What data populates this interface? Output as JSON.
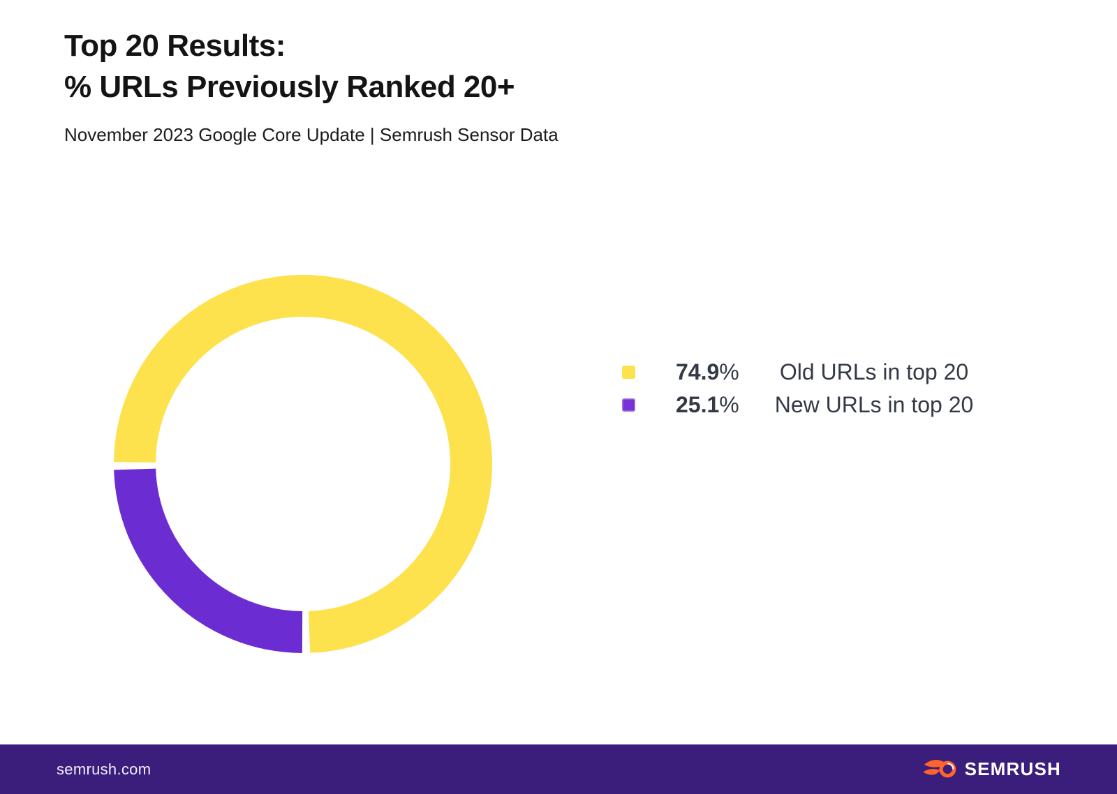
{
  "header": {
    "title_line1": "Top 20 Results:",
    "title_line2": "% URLs Previously Ranked 20+",
    "subtitle": "November 2023 Google Core Update | Semrush Sensor Data"
  },
  "chart_data": {
    "type": "pie",
    "donut": true,
    "title": "Top 20 Results: % URLs Previously Ranked 20+",
    "subtitle": "November 2023 Google Core Update | Semrush Sensor Data",
    "unit": "%",
    "series": [
      {
        "name": "Old URLs in top 20",
        "value": 74.9,
        "color": "#FDE24D",
        "legend_color": "#FDE24D"
      },
      {
        "name": "New URLs in top 20",
        "value": 25.1,
        "color": "#6B2DD1",
        "legend_color": "#7733D6"
      }
    ],
    "legend_position": "right",
    "start_angle_deg": 269.4,
    "segment_gap_deg": 2.4,
    "ring_outer_radius_px": 271,
    "ring_thickness_px": 60,
    "background": "#ffffff"
  },
  "legend": {
    "percent_sign": "%"
  },
  "footer": {
    "site": "semrush.com",
    "brand": "SEMRUSH",
    "background_color": "#3B1D7C",
    "logo_orange": "#FF642D",
    "text_color": "#ffffff"
  }
}
